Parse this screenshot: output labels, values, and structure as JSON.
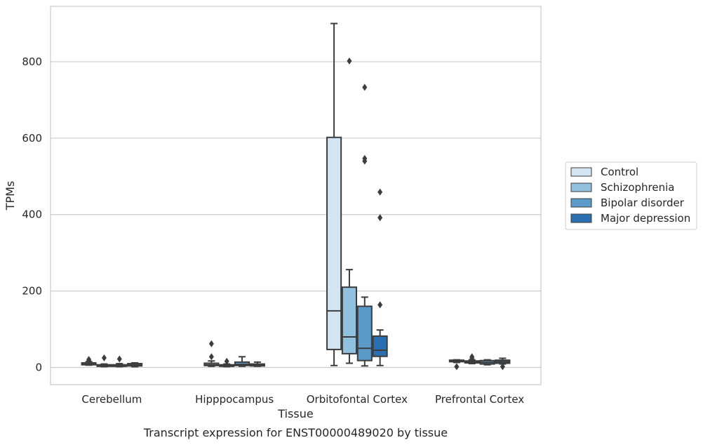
{
  "chart_data": {
    "type": "box",
    "title": "",
    "caption": "Transcript expression for ENST00000489020 by tissue",
    "xlabel": "Tissue",
    "ylabel": "TPMs",
    "ylim": [
      -45,
      945
    ],
    "yticks": [
      0,
      200,
      400,
      600,
      800
    ],
    "grid": true,
    "legend_placement": "right",
    "categories": [
      "Cerebellum",
      "Hipppocampus",
      "Orbitofontal Cortex",
      "Prefrontal Cortex"
    ],
    "series": [
      {
        "name": "Control",
        "color": "#d3e4f3",
        "boxes": [
          {
            "whislo": 6,
            "q1": 7,
            "med": 9,
            "q3": 12,
            "whishi": 15,
            "fliers": [
              18,
              21
            ]
          },
          {
            "whislo": 3,
            "q1": 5,
            "med": 7,
            "q3": 11,
            "whishi": 17,
            "fliers": [
              28,
              62
            ]
          },
          {
            "whislo": 5,
            "q1": 47,
            "med": 148,
            "q3": 602,
            "whishi": 900,
            "fliers": []
          },
          {
            "whislo": 13,
            "q1": 15,
            "med": 17,
            "q3": 19,
            "whishi": 20,
            "fliers": [
              2
            ]
          }
        ]
      },
      {
        "name": "Schizophrenia",
        "color": "#92c0df",
        "boxes": [
          {
            "whislo": 2,
            "q1": 3,
            "med": 5,
            "q3": 7,
            "whishi": 9,
            "fliers": [
              25
            ]
          },
          {
            "whislo": 2,
            "q1": 3,
            "med": 5,
            "q3": 7,
            "whishi": 9,
            "fliers": [
              16
            ]
          },
          {
            "whislo": 11,
            "q1": 36,
            "med": 80,
            "q3": 210,
            "whishi": 256,
            "fliers": [
              802
            ]
          },
          {
            "whislo": 10,
            "q1": 12,
            "med": 15,
            "q3": 17,
            "whishi": 20,
            "fliers": [
              28,
              24
            ]
          }
        ]
      },
      {
        "name": "Bipolar disorder",
        "color": "#5b9bc9",
        "boxes": [
          {
            "whislo": 2,
            "q1": 3,
            "med": 5,
            "q3": 7,
            "whishi": 10,
            "fliers": [
              22
            ]
          },
          {
            "whislo": 3,
            "q1": 5,
            "med": 8,
            "q3": 14,
            "whishi": 28,
            "fliers": []
          },
          {
            "whislo": 4,
            "q1": 18,
            "med": 50,
            "q3": 160,
            "whishi": 184,
            "fliers": [
              733,
              547,
              540
            ]
          },
          {
            "whislo": 7,
            "q1": 9,
            "med": 13,
            "q3": 18,
            "whishi": 20,
            "fliers": []
          }
        ]
      },
      {
        "name": "Major depression",
        "color": "#2a6fb0",
        "boxes": [
          {
            "whislo": 2,
            "q1": 4,
            "med": 6,
            "q3": 10,
            "whishi": 12,
            "fliers": []
          },
          {
            "whislo": 3,
            "q1": 4,
            "med": 6,
            "q3": 9,
            "whishi": 14,
            "fliers": []
          },
          {
            "whislo": 5,
            "q1": 29,
            "med": 45,
            "q3": 82,
            "whishi": 98,
            "fliers": [
              459,
              392,
              164
            ]
          },
          {
            "whislo": 9,
            "q1": 11,
            "med": 15,
            "q3": 19,
            "whishi": 24,
            "fliers": [
              2
            ]
          }
        ]
      }
    ]
  }
}
